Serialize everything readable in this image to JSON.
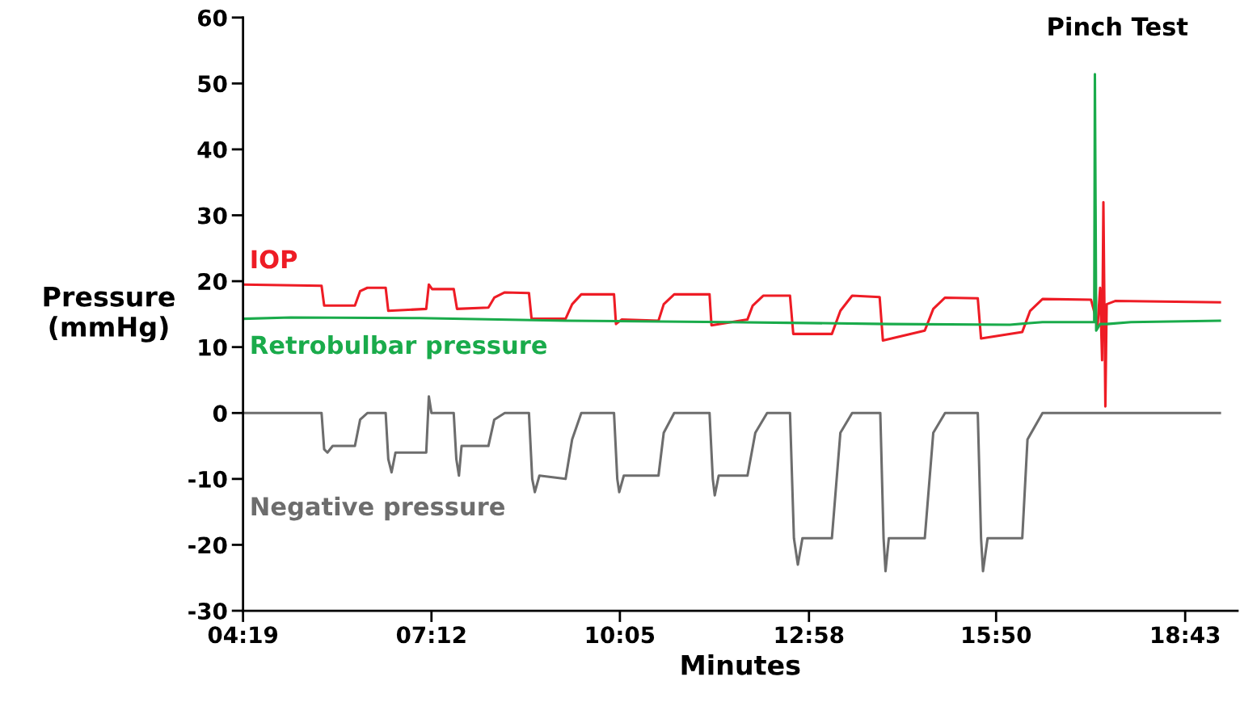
{
  "chart_data": {
    "type": "line",
    "xlabel": "Minutes",
    "ylabel": "Pressure\n(mmHg)",
    "xlim": [
      4.32,
      19.52
    ],
    "ylim": [
      -30,
      60
    ],
    "xticks": [
      {
        "value": 4.32,
        "label": "04:19"
      },
      {
        "value": 7.2,
        "label": "07:12"
      },
      {
        "value": 10.08,
        "label": "10:05"
      },
      {
        "value": 12.97,
        "label": "12:58"
      },
      {
        "value": 15.83,
        "label": "15:50"
      },
      {
        "value": 18.72,
        "label": "18:43"
      }
    ],
    "yticks": [
      -30,
      -20,
      -10,
      0,
      10,
      20,
      30,
      40,
      50,
      60
    ],
    "grid": false,
    "legend": false,
    "series": [
      {
        "name": "IOP",
        "color": "#ee1c25",
        "x": [
          4.32,
          5.52,
          5.56,
          6.03,
          6.11,
          6.22,
          6.5,
          6.54,
          7.12,
          7.16,
          7.21,
          7.54,
          7.59,
          8.07,
          8.16,
          8.32,
          8.69,
          8.73,
          9.25,
          9.35,
          9.49,
          9.99,
          10.02,
          10.11,
          10.67,
          10.75,
          10.91,
          11.45,
          11.48,
          12.03,
          12.11,
          12.27,
          12.68,
          12.73,
          13.32,
          13.45,
          13.63,
          14.05,
          14.1,
          14.74,
          14.87,
          15.05,
          15.55,
          15.6,
          16.23,
          16.35,
          16.54,
          17.28,
          17.34,
          17.38,
          17.42,
          17.45,
          17.47,
          17.5,
          17.52,
          17.65,
          19.25
        ],
        "values": [
          19.5,
          19.3,
          16.3,
          16.3,
          18.5,
          19.0,
          19.0,
          15.5,
          15.8,
          19.5,
          18.8,
          18.8,
          15.8,
          16.0,
          17.5,
          18.3,
          18.2,
          14.3,
          14.3,
          16.5,
          18.0,
          18.0,
          13.5,
          14.2,
          14.0,
          16.5,
          18.0,
          18.0,
          13.3,
          14.2,
          16.3,
          17.8,
          17.8,
          12.0,
          12.0,
          15.5,
          17.8,
          17.6,
          11.0,
          12.5,
          15.8,
          17.5,
          17.4,
          11.3,
          12.3,
          15.5,
          17.3,
          17.2,
          15.0,
          13.0,
          19.0,
          8.0,
          32.0,
          1.0,
          16.5,
          17.0,
          16.8
        ]
      },
      {
        "name": "Retrobulbar pressure",
        "color": "#1aab4b",
        "x": [
          4.32,
          5.05,
          7.02,
          9.25,
          11.72,
          14.19,
          16.04,
          16.54,
          17.33,
          17.34,
          17.36,
          17.42,
          17.52,
          17.89,
          19.25
        ],
        "values": [
          14.3,
          14.5,
          14.4,
          14.0,
          13.8,
          13.5,
          13.4,
          13.8,
          13.8,
          51.4,
          12.5,
          13.5,
          13.5,
          13.8,
          14.0
        ]
      },
      {
        "name": "Negative pressure",
        "color": "#6d6d6d",
        "x": [
          4.32,
          5.52,
          5.56,
          5.61,
          5.69,
          6.03,
          6.11,
          6.22,
          6.5,
          6.54,
          6.59,
          6.65,
          7.12,
          7.16,
          7.2,
          7.54,
          7.58,
          7.62,
          7.66,
          8.07,
          8.16,
          8.32,
          8.69,
          8.74,
          8.78,
          8.85,
          9.25,
          9.35,
          9.49,
          9.99,
          10.04,
          10.07,
          10.14,
          10.67,
          10.75,
          10.91,
          11.45,
          11.5,
          11.53,
          11.59,
          12.03,
          12.15,
          12.33,
          12.68,
          12.74,
          12.8,
          12.87,
          13.32,
          13.45,
          13.63,
          14.06,
          14.11,
          14.14,
          14.19,
          14.74,
          14.87,
          15.05,
          15.55,
          15.6,
          15.63,
          15.7,
          16.23,
          16.31,
          16.54,
          19.25
        ],
        "values": [
          0,
          0,
          -5.5,
          -6,
          -5,
          -5,
          -1,
          0,
          0,
          -7,
          -9,
          -6,
          -6,
          2.5,
          0,
          0,
          -7,
          -9.5,
          -5,
          -5,
          -1,
          0,
          0,
          -10,
          -12,
          -9.5,
          -10,
          -4,
          0,
          0,
          -10,
          -12,
          -9.5,
          -9.5,
          -3,
          0,
          0,
          -10,
          -12.5,
          -9.5,
          -9.5,
          -3,
          0,
          0,
          -19,
          -23,
          -19,
          -19,
          -3,
          0,
          0,
          -19,
          -24,
          -19,
          -19,
          -3,
          0,
          0,
          -19,
          -24,
          -19,
          -19,
          -4,
          0,
          0
        ]
      }
    ],
    "annotations": [
      {
        "text": "Pinch Test",
        "x": 17.34,
        "y": 51.4
      }
    ]
  }
}
